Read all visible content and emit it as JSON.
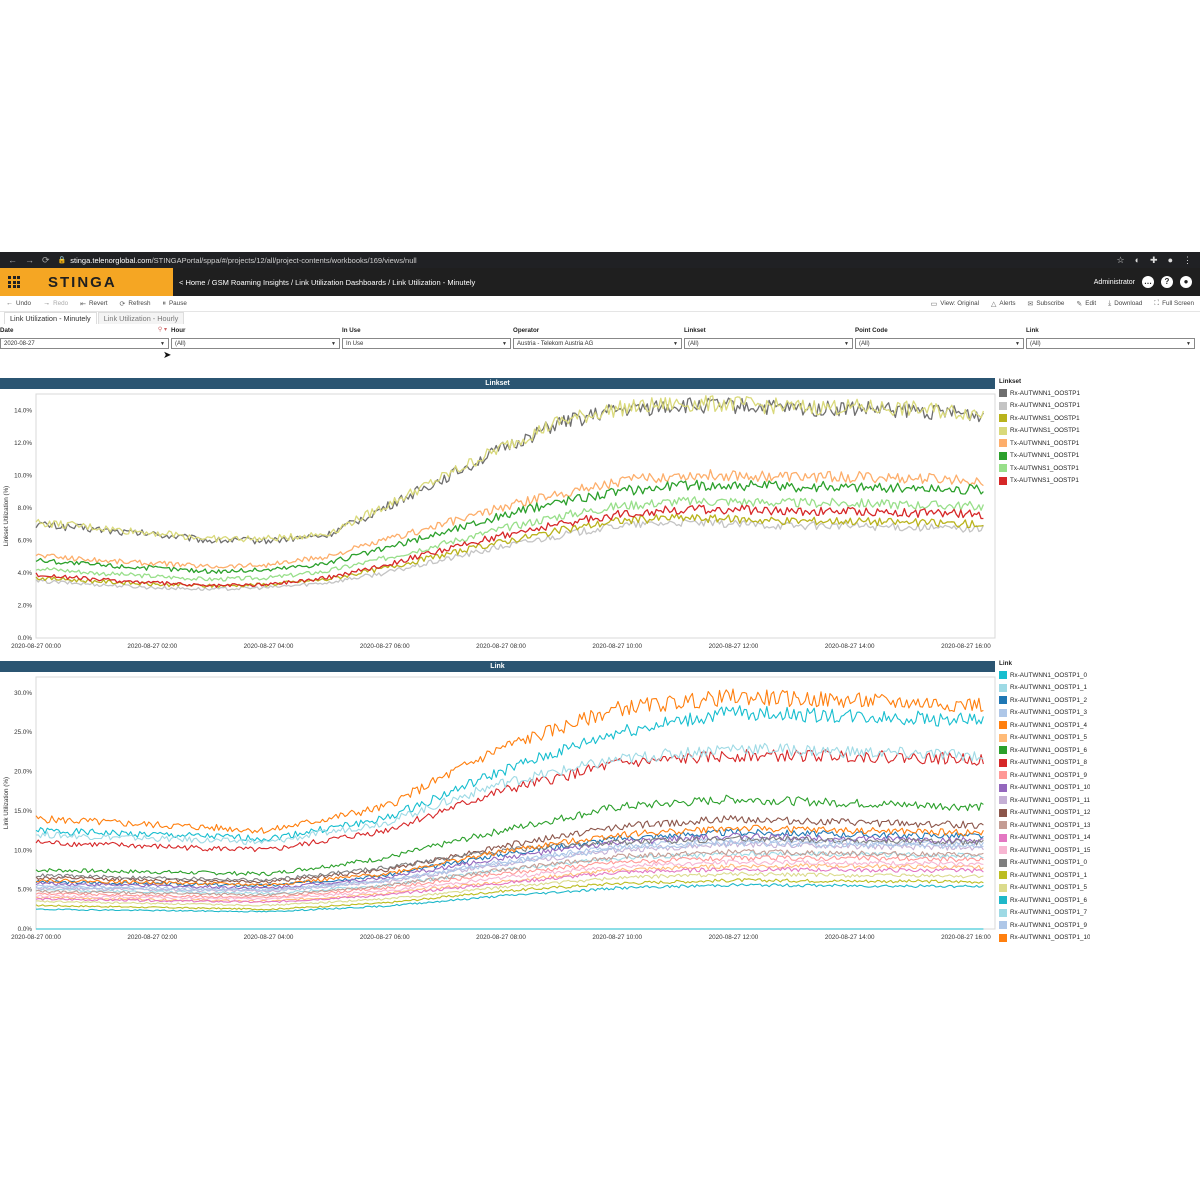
{
  "browser": {
    "url_host": "stinga.telenorglobal.com",
    "url_path": "/STINGAPortal/sppa/#/projects/12/all/project-contents/workbooks/169/views/null"
  },
  "app": {
    "brand": "STINGA",
    "breadcrumb": {
      "prefix": "< ",
      "items": [
        "Home",
        "GSM Roaming Insights",
        "Link Utilization Dashboards",
        "Link Utilization - Minutely"
      ]
    },
    "user": "Administrator"
  },
  "toolbar": {
    "left": [
      {
        "label": "Undo",
        "icon": "undo-icon",
        "glyph": "←",
        "disabled": false
      },
      {
        "label": "Redo",
        "icon": "redo-icon",
        "glyph": "→",
        "disabled": true
      },
      {
        "label": "Revert",
        "icon": "revert-icon",
        "glyph": "⇤",
        "disabled": false
      },
      {
        "label": "Refresh",
        "icon": "refresh-icon",
        "glyph": "⟳",
        "disabled": false
      },
      {
        "label": "Pause",
        "icon": "pause-icon",
        "glyph": "⏸",
        "disabled": false
      }
    ],
    "right": [
      {
        "label": "View: Original",
        "icon": "view-icon",
        "glyph": "▭"
      },
      {
        "label": "Alerts",
        "icon": "alert-icon",
        "glyph": "△"
      },
      {
        "label": "Subscribe",
        "icon": "subscribe-icon",
        "glyph": "✉"
      },
      {
        "label": "Edit",
        "icon": "edit-icon",
        "glyph": "✎"
      },
      {
        "label": "Download",
        "icon": "download-icon",
        "glyph": "⤓"
      },
      {
        "label": "Full Screen",
        "icon": "fullscreen-icon",
        "glyph": "⛶"
      }
    ]
  },
  "tabs": [
    {
      "label": "Link Utilization - Minutely",
      "active": true
    },
    {
      "label": "Link Utilization - Hourly",
      "active": false
    }
  ],
  "filters": [
    {
      "label": "Date",
      "value": "2020-08-27"
    },
    {
      "label": "Hour",
      "value": "(All)"
    },
    {
      "label": "In Use",
      "value": "In Use"
    },
    {
      "label": "Operator",
      "value": "Austria - Telekom Austria AG"
    },
    {
      "label": "Linkset",
      "value": "(All)"
    },
    {
      "label": "Point Code",
      "value": "(All)"
    },
    {
      "label": "Link",
      "value": "(All)"
    }
  ],
  "chart_data": [
    {
      "type": "line",
      "title": "Linkset",
      "ylabel": "Linkset Utilization (%)",
      "xlabel": "",
      "ylim": [
        0,
        15
      ],
      "y_ticks": [
        "0.0%",
        "2.0%",
        "4.0%",
        "6.0%",
        "8.0%",
        "10.0%",
        "12.0%",
        "14.0%"
      ],
      "x_ticks": [
        "2020-08-27 00:00",
        "2020-08-27 02:00",
        "2020-08-27 04:00",
        "2020-08-27 06:00",
        "2020-08-27 08:00",
        "2020-08-27 10:00",
        "2020-08-27 12:00",
        "2020-08-27 14:00",
        "2020-08-27 16:00"
      ],
      "x_hours": [
        0,
        2,
        4,
        6,
        8,
        10,
        12,
        14,
        16
      ],
      "x_range_hours": [
        0,
        16.5
      ],
      "grid": false,
      "legend_title": "Linkset",
      "legend_position": "right",
      "series": [
        {
          "name": "Rx-AUTWNN1_OOSTP1",
          "color": "#6e6e6e",
          "hours": [
            0,
            1,
            1.5,
            2,
            3,
            4,
            5,
            6,
            7,
            8,
            9,
            10,
            11,
            12,
            13,
            14,
            15,
            16.3
          ],
          "values": [
            7.0,
            6.7,
            6.5,
            6.4,
            6.0,
            6.0,
            6.3,
            8.0,
            9.8,
            11.6,
            13.2,
            14.0,
            14.3,
            14.3,
            14.1,
            14.1,
            14.0,
            13.7
          ]
        },
        {
          "name": "Rx-AUTWNN1_OOSTP1",
          "color": "#c4c4c4",
          "hours": [
            0,
            1,
            1.5,
            2,
            3,
            4,
            5,
            6,
            7,
            8,
            9,
            10,
            11,
            12,
            13,
            14,
            15,
            16.3
          ],
          "values": [
            3.5,
            3.3,
            3.2,
            3.1,
            3.0,
            3.1,
            3.4,
            4.0,
            4.8,
            5.6,
            6.3,
            6.9,
            7.1,
            7.0,
            6.9,
            6.9,
            6.8,
            6.7
          ]
        },
        {
          "name": "Rx-AUTWNS1_OOSTP1",
          "color": "#b9b31c",
          "hours": [
            0,
            1,
            1.5,
            2,
            3,
            4,
            5,
            6,
            7,
            8,
            9,
            10,
            11,
            12,
            13,
            14,
            15,
            16.3
          ],
          "values": [
            3.7,
            3.5,
            3.4,
            3.3,
            3.2,
            3.3,
            3.6,
            4.3,
            5.1,
            5.9,
            6.6,
            7.2,
            7.4,
            7.3,
            7.2,
            7.2,
            7.1,
            7.0
          ]
        },
        {
          "name": "Rx-AUTWNS1_OOSTP1",
          "color": "#d9d97a",
          "hours": [
            0,
            1,
            1.5,
            2,
            3,
            4,
            5,
            6,
            7,
            8,
            9,
            10,
            11,
            12,
            13,
            14,
            15,
            16.3
          ],
          "values": [
            7.1,
            6.8,
            6.6,
            6.5,
            6.1,
            6.1,
            6.4,
            8.1,
            9.9,
            11.7,
            13.3,
            14.1,
            14.4,
            14.4,
            14.2,
            14.2,
            14.1,
            13.8
          ]
        },
        {
          "name": "Tx-AUTWNN1_OOSTP1",
          "color": "#fdae6b",
          "hours": [
            0,
            1,
            1.5,
            2,
            3,
            4,
            5,
            6,
            7,
            8,
            9,
            10,
            11,
            12,
            13,
            14,
            15,
            16.3
          ],
          "values": [
            5.1,
            4.8,
            4.7,
            4.6,
            4.4,
            4.5,
            5.0,
            6.0,
            7.0,
            8.0,
            8.9,
            9.6,
            10.0,
            10.0,
            9.9,
            9.9,
            9.8,
            9.7
          ]
        },
        {
          "name": "Tx-AUTWNN1_OOSTP1",
          "color": "#2ca02c",
          "hours": [
            0,
            1,
            1.5,
            2,
            3,
            4,
            5,
            6,
            7,
            8,
            9,
            10,
            11,
            12,
            13,
            14,
            15,
            16.3
          ],
          "values": [
            4.8,
            4.5,
            4.4,
            4.3,
            4.1,
            4.2,
            4.6,
            5.5,
            6.5,
            7.5,
            8.4,
            9.0,
            9.4,
            9.4,
            9.3,
            9.3,
            9.2,
            9.1
          ]
        },
        {
          "name": "Tx-AUTWNS1_OOSTP1",
          "color": "#98df8a",
          "hours": [
            0,
            1,
            1.5,
            2,
            3,
            4,
            5,
            6,
            7,
            8,
            9,
            10,
            11,
            12,
            13,
            14,
            15,
            16.3
          ],
          "values": [
            4.3,
            4.0,
            3.9,
            3.8,
            3.6,
            3.7,
            4.1,
            4.9,
            5.8,
            6.7,
            7.5,
            8.1,
            8.4,
            8.4,
            8.3,
            8.3,
            8.2,
            8.1
          ]
        },
        {
          "name": "Tx-AUTWNS1_OOSTP1",
          "color": "#d62728",
          "hours": [
            0,
            1,
            1.5,
            2,
            3,
            4,
            5,
            6,
            7,
            8,
            9,
            10,
            11,
            12,
            13,
            14,
            15,
            16.3
          ],
          "values": [
            3.9,
            3.6,
            3.5,
            3.4,
            3.2,
            3.3,
            3.7,
            4.5,
            5.4,
            6.3,
            7.0,
            7.6,
            7.9,
            7.9,
            7.8,
            7.8,
            7.7,
            7.6
          ]
        }
      ]
    },
    {
      "type": "line",
      "title": "Link",
      "ylabel": "Link Utilization (%)",
      "xlabel": "",
      "ylim": [
        0,
        32
      ],
      "y_ticks": [
        "0.0%",
        "5.0%",
        "10.0%",
        "15.0%",
        "20.0%",
        "25.0%",
        "30.0%"
      ],
      "x_ticks": [
        "2020-08-27 00:00",
        "2020-08-27 02:00",
        "2020-08-27 04:00",
        "2020-08-27 06:00",
        "2020-08-27 08:00",
        "2020-08-27 10:00",
        "2020-08-27 12:00",
        "2020-08-27 14:00",
        "2020-08-27 16:00"
      ],
      "x_hours": [
        0,
        2,
        4,
        6,
        8,
        10,
        12,
        14,
        16
      ],
      "x_range_hours": [
        0,
        16.5
      ],
      "grid": false,
      "legend_title": "Link",
      "legend_position": "right",
      "series": [
        {
          "name": "Rx-AUTWNN1_OOSTP1_0",
          "color": "#17becf",
          "hours": [
            0,
            4,
            6,
            8,
            10,
            12,
            14,
            16.3
          ],
          "values": [
            12.5,
            11.5,
            14.0,
            20.0,
            25.0,
            27.5,
            27.0,
            26.5
          ]
        },
        {
          "name": "Rx-AUTWNN1_OOSTP1_1",
          "color": "#9edae5",
          "hours": [
            0,
            4,
            6,
            8,
            10,
            12,
            14,
            16.3
          ],
          "values": [
            5.0,
            4.5,
            5.5,
            7.5,
            9.0,
            9.5,
            9.5,
            9.3
          ]
        },
        {
          "name": "Rx-AUTWNN1_OOSTP1_2",
          "color": "#1f77b4",
          "hours": [
            0,
            4,
            6,
            8,
            10,
            12,
            14,
            16.3
          ],
          "values": [
            6.0,
            5.5,
            6.8,
            9.5,
            11.5,
            12.3,
            12.0,
            11.8
          ]
        },
        {
          "name": "Rx-AUTWNN1_OOSTP1_3",
          "color": "#aec7e8",
          "hours": [
            0,
            4,
            6,
            8,
            10,
            12,
            14,
            16.3
          ],
          "values": [
            5.5,
            5.0,
            6.2,
            8.5,
            10.5,
            11.3,
            11.0,
            10.8
          ]
        },
        {
          "name": "Rx-AUTWNN1_OOSTP1_4",
          "color": "#ff7f0e",
          "hours": [
            0,
            4,
            6,
            8,
            10,
            12,
            14,
            16.3
          ],
          "values": [
            14.0,
            12.5,
            15.5,
            23.0,
            28.0,
            29.5,
            29.0,
            28.5
          ]
        },
        {
          "name": "Rx-AUTWNN1_OOSTP1_5",
          "color": "#ffbb78",
          "hours": [
            0,
            4,
            6,
            8,
            10,
            12,
            14,
            16.3
          ],
          "values": [
            4.0,
            3.5,
            4.5,
            6.0,
            7.5,
            8.0,
            8.0,
            7.8
          ]
        },
        {
          "name": "Rx-AUTWNN1_OOSTP1_6",
          "color": "#2ca02c",
          "hours": [
            0,
            4,
            6,
            8,
            10,
            12,
            14,
            16.3
          ],
          "values": [
            7.5,
            7.0,
            9.0,
            12.5,
            15.5,
            16.5,
            16.0,
            15.5
          ]
        },
        {
          "name": "Rx-AUTWNN1_OOSTP1_8",
          "color": "#d62728",
          "hours": [
            0,
            4,
            6,
            8,
            10,
            12,
            14,
            16.3
          ],
          "values": [
            11.0,
            10.0,
            12.5,
            17.5,
            21.0,
            22.0,
            22.0,
            21.5
          ]
        },
        {
          "name": "Rx-AUTWNN1_OOSTP1_9",
          "color": "#ff9896",
          "hours": [
            0,
            4,
            6,
            8,
            10,
            12,
            14,
            16.3
          ],
          "values": [
            4.5,
            4.0,
            5.2,
            7.0,
            8.5,
            9.0,
            9.0,
            8.8
          ]
        },
        {
          "name": "Rx-AUTWNN1_OOSTP1_10",
          "color": "#9467bd",
          "hours": [
            0,
            4,
            6,
            8,
            10,
            12,
            14,
            16.3
          ],
          "values": [
            5.8,
            5.2,
            6.5,
            9.0,
            11.0,
            11.8,
            11.5,
            11.2
          ]
        },
        {
          "name": "Rx-AUTWNN1_OOSTP1_11",
          "color": "#c5b0d5",
          "hours": [
            0,
            4,
            6,
            8,
            10,
            12,
            14,
            16.3
          ],
          "values": [
            5.2,
            4.8,
            6.0,
            8.2,
            10.0,
            10.8,
            10.5,
            10.3
          ]
        },
        {
          "name": "Rx-AUTWNN1_OOSTP1_12",
          "color": "#8c564b",
          "hours": [
            0,
            4,
            6,
            8,
            10,
            12,
            14,
            16.3
          ],
          "values": [
            6.5,
            6.0,
            7.5,
            10.5,
            13.0,
            14.0,
            13.5,
            13.2
          ]
        },
        {
          "name": "Rx-AUTWNN1_OOSTP1_13",
          "color": "#c49c94",
          "hours": [
            0,
            4,
            6,
            8,
            10,
            12,
            14,
            16.3
          ],
          "values": [
            4.8,
            4.3,
            5.5,
            7.5,
            9.2,
            9.8,
            9.6,
            9.4
          ]
        },
        {
          "name": "Rx-AUTWNN1_OOSTP1_14",
          "color": "#e377c2",
          "hours": [
            0,
            4,
            6,
            8,
            10,
            12,
            14,
            16.3
          ],
          "values": [
            3.8,
            3.4,
            4.3,
            5.8,
            7.2,
            7.6,
            7.5,
            7.4
          ]
        },
        {
          "name": "Rx-AUTWNN1_OOSTP1_15",
          "color": "#f7b6d2",
          "hours": [
            0,
            4,
            6,
            8,
            10,
            12,
            14,
            16.3
          ],
          "values": [
            4.2,
            3.8,
            4.8,
            6.5,
            8.0,
            8.5,
            8.4,
            8.2
          ]
        },
        {
          "name": "Rx-AUTWNN1_OOSTP1_0",
          "color": "#7f7f7f",
          "hours": [
            0,
            4,
            6,
            8,
            10,
            12,
            14,
            16.3
          ],
          "values": [
            6.8,
            6.2,
            7.8,
            10.0,
            11.0,
            11.5,
            11.2,
            11.0
          ]
        },
        {
          "name": "Rx-AUTWNN1_OOSTP1_1",
          "color": "#bcbd22",
          "hours": [
            0,
            4,
            6,
            8,
            10,
            12,
            14,
            16.3
          ],
          "values": [
            3.0,
            2.5,
            3.3,
            4.8,
            5.8,
            6.2,
            6.1,
            6.0
          ]
        },
        {
          "name": "Rx-AUTWNN1_OOSTP1_5",
          "color": "#dbdb8d",
          "hours": [
            0,
            4,
            6,
            8,
            10,
            12,
            14,
            16.3
          ],
          "values": [
            3.5,
            3.0,
            3.8,
            5.3,
            6.5,
            7.0,
            6.8,
            6.7
          ]
        },
        {
          "name": "Rx-AUTWNN1_OOSTP1_6",
          "color": "#1fb8c9",
          "hours": [
            0,
            4,
            6,
            8,
            10,
            12,
            14,
            16.3
          ],
          "values": [
            2.5,
            2.2,
            2.9,
            4.2,
            5.2,
            5.6,
            5.5,
            5.4
          ]
        },
        {
          "name": "Rx-AUTWNN1_OOSTP1_7",
          "color": "#9edae5",
          "hours": [
            0,
            4,
            6,
            8,
            10,
            12,
            14,
            16.3
          ],
          "values": [
            12.0,
            11.0,
            13.5,
            18.5,
            21.5,
            23.0,
            22.5,
            22.0
          ]
        },
        {
          "name": "Rx-AUTWNN1_OOSTP1_9",
          "color": "#aec7e8",
          "hours": [
            0,
            4,
            6,
            8,
            10,
            12,
            14,
            16.3
          ],
          "values": [
            5.3,
            4.9,
            6.1,
            8.3,
            10.2,
            10.9,
            10.7,
            10.5
          ]
        },
        {
          "name": "Rx-AUTWNN1_OOSTP1_10",
          "color": "#ff7f0e",
          "hours": [
            0,
            4,
            6,
            8,
            10,
            12,
            14,
            16.3
          ],
          "values": [
            6.2,
            5.6,
            7.0,
            9.8,
            12.0,
            12.8,
            12.5,
            12.2
          ]
        },
        {
          "name": "",
          "color": "#17becf",
          "hours": [
            0,
            16.3
          ],
          "values": [
            0.0,
            0.0
          ]
        }
      ]
    }
  ]
}
